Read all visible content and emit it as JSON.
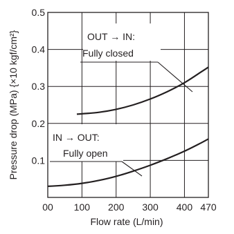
{
  "chart_data": {
    "type": "line",
    "xlabel": "Flow rate (L/min)",
    "ylabel": "Pressure drop (MPa) {×10 kgf/cm²}",
    "xlim": [
      0,
      470
    ],
    "ylim": [
      0,
      0.5
    ],
    "x_ticks": [
      "00",
      "100",
      "200",
      "300",
      "400",
      "470"
    ],
    "y_ticks": [
      "0.1",
      "0.2",
      "0.3",
      "0.4",
      "0.5"
    ],
    "grid": true,
    "series": [
      {
        "name": "OUT → IN: Fully closed",
        "x": [
          85,
          100,
          150,
          200,
          250,
          300,
          350,
          400,
          450,
          470
        ],
        "y": [
          0.225,
          0.226,
          0.23,
          0.238,
          0.25,
          0.266,
          0.286,
          0.31,
          0.34,
          0.352
        ]
      },
      {
        "name": "IN → OUT: Fully open",
        "x": [
          0,
          50,
          100,
          150,
          200,
          250,
          300,
          350,
          400,
          450,
          470
        ],
        "y": [
          0.03,
          0.033,
          0.038,
          0.046,
          0.057,
          0.071,
          0.087,
          0.105,
          0.125,
          0.148,
          0.158
        ]
      }
    ],
    "annotations": [
      {
        "lines": [
          "OUT → IN:",
          "Fully closed"
        ]
      },
      {
        "lines": [
          "IN → OUT:",
          "Fully open"
        ]
      }
    ]
  }
}
